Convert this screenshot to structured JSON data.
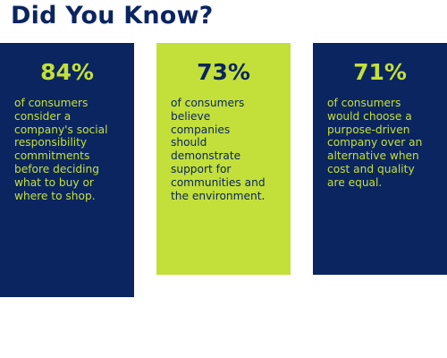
{
  "title": "Did You Know?",
  "cards": [
    {
      "stat": "84%",
      "lines": [
        "of consumers",
        "consider a",
        "company's social",
        "responsibility",
        "commitments",
        "before deciding",
        "what to buy or",
        "where to shop."
      ]
    },
    {
      "stat": "73%",
      "lines": [
        "of consumers",
        "believe",
        "companies",
        "should",
        "demonstrate",
        "support for",
        "communities and",
        "the environment."
      ]
    },
    {
      "stat": "71%",
      "lines": [
        "of consumers",
        "would choose a",
        "purpose-driven",
        "company over an",
        "alternative when",
        "cost and quality",
        "are equal."
      ]
    }
  ]
}
